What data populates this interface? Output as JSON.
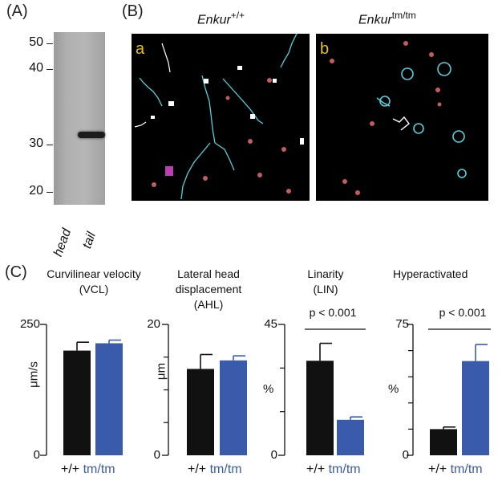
{
  "panels": {
    "a_label": "(A)",
    "b_label": "(B)",
    "c_label": "(C)"
  },
  "western_blot": {
    "mw_markers": [
      "50",
      "40",
      "30",
      "20"
    ],
    "lanes": [
      "head",
      "tail"
    ]
  },
  "micrographs": [
    {
      "letter": "a",
      "genotype_base": "Enkur",
      "genotype_sup": "+/+"
    },
    {
      "letter": "b",
      "genotype_base": "Enkur",
      "genotype_sup": "tm/tm"
    }
  ],
  "colors": {
    "wildtype_bar": "#111111",
    "mutant_bar": "#3a5bab",
    "mutant_text": "#3a5bab",
    "track_cyan": "#4fd2dd",
    "letter_yellow": "#e8c21a"
  },
  "chart_data": [
    {
      "type": "bar",
      "title": "Curvilinear velocity (VCL)",
      "ylabel": "μm/s",
      "ylim": [
        0,
        250
      ],
      "yticks": [
        "250",
        "0"
      ],
      "categories": [
        "+/+",
        "tm/tm"
      ],
      "values": [
        200,
        214
      ],
      "errors": [
        16,
        6
      ],
      "pvalue": ""
    },
    {
      "type": "bar",
      "title": "Lateral head displacement (AHL)",
      "ylabel": "μm",
      "ylim": [
        0,
        20
      ],
      "yticks": [
        "20",
        "0"
      ],
      "categories": [
        "+/+",
        "tm/tm"
      ],
      "values": [
        13.2,
        14.5
      ],
      "errors": [
        2.2,
        0.7
      ],
      "pvalue": ""
    },
    {
      "type": "bar",
      "title": "Linarity (LIN)",
      "ylabel": "%",
      "ylim": [
        0,
        45
      ],
      "yticks": [
        "45",
        "0"
      ],
      "categories": [
        "+/+",
        "tm/tm"
      ],
      "values": [
        32.5,
        12.2
      ],
      "errors": [
        6.0,
        1.0
      ],
      "pvalue": "p < 0.001"
    },
    {
      "type": "bar",
      "title": "Hyperactivated",
      "ylabel": "%",
      "ylim": [
        0,
        75
      ],
      "yticks": [
        "75",
        "0"
      ],
      "categories": [
        "+/+",
        "tm/tm"
      ],
      "values": [
        15,
        54
      ],
      "errors": [
        1.2,
        9.5
      ],
      "pvalue": "p < 0.001"
    }
  ]
}
